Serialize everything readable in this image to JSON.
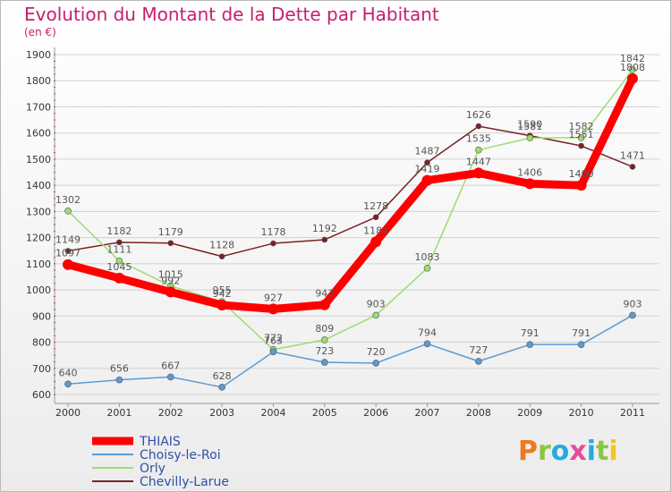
{
  "title": "Evolution du Montant de la Dette par Habitant",
  "subtitle": "(en €)",
  "logo": {
    "text": "Proxiti",
    "letters": [
      "P",
      "r",
      "o",
      "x",
      "i",
      "t",
      "i"
    ],
    "letter_colors": [
      "#f07820",
      "#8cc63f",
      "#27aae1",
      "#e84b9a",
      "#27aae1",
      "#8cc63f",
      "#f7c31e"
    ]
  },
  "chart_data": {
    "type": "line",
    "x": [
      "2000",
      "2001",
      "2002",
      "2003",
      "2004",
      "2005",
      "2006",
      "2007",
      "2008",
      "2009",
      "2010",
      "2011"
    ],
    "ylim": [
      600,
      1900
    ],
    "y_ticks": [
      "600",
      "700",
      "800",
      "900",
      "1000",
      "1100",
      "1200",
      "1300",
      "1400",
      "1500",
      "1600",
      "1700",
      "1800",
      "1900"
    ],
    "grid": true,
    "legend_position": "bottom-left",
    "series": [
      {
        "name": "Chevilly-Larue",
        "color": "#7a2323",
        "values": [
          1149,
          1182,
          1179,
          1128,
          1178,
          1192,
          1278,
          1487,
          1626,
          1590,
          1551,
          1471
        ]
      },
      {
        "name": "Orly",
        "color": "#9ddc6e",
        "values": [
          1302,
          1111,
          1015,
          955,
          772,
          809,
          903,
          1083,
          1535,
          1581,
          1582,
          1842
        ]
      },
      {
        "name": "Choisy-le-Roi",
        "color": "#5b9bd1",
        "values": [
          640,
          656,
          667,
          628,
          763,
          723,
          720,
          794,
          727,
          791,
          791,
          903
        ]
      },
      {
        "name": "THIAIS",
        "color": "#ff0000",
        "values": [
          1097,
          1045,
          992,
          942,
          927,
          943,
          1184,
          1419,
          1447,
          1406,
          1400,
          1808
        ]
      }
    ]
  }
}
